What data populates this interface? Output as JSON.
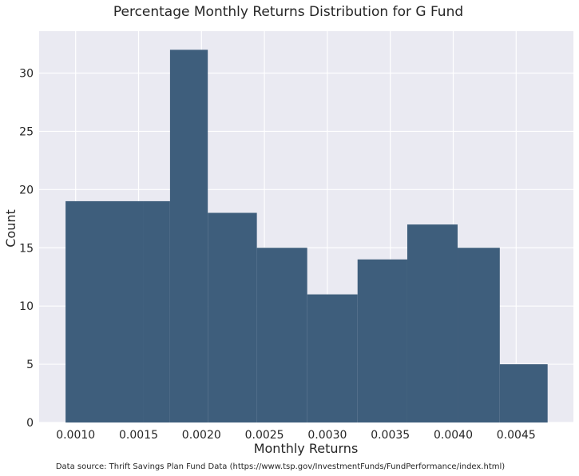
{
  "chart_data": {
    "type": "bar",
    "title": "Percentage Monthly Returns Distribution for G Fund",
    "xlabel": "Monthly Returns",
    "ylabel": "Count",
    "source_note": "Data source: Thrift Savings Plan Fund Data (https://www.tsp.gov/InvestmentFunds/FundPerformance/index.html)",
    "bin_edges": [
      0.00092,
      0.001535,
      0.00175,
      0.00205,
      0.00244,
      0.00284,
      0.00324,
      0.003635,
      0.004035,
      0.00437,
      0.00475
    ],
    "values": [
      19,
      19,
      32,
      18,
      15,
      11,
      14,
      17,
      15,
      5
    ],
    "xlim": [
      0.00071,
      0.004955
    ],
    "ylim": [
      0,
      33.6
    ],
    "xticks": [
      0.001,
      0.0015,
      0.002,
      0.0025,
      0.003,
      0.0035,
      0.004,
      0.0045
    ],
    "xtick_labels": [
      "0.0010",
      "0.0015",
      "0.0020",
      "0.0025",
      "0.0030",
      "0.0035",
      "0.0040",
      "0.0045"
    ],
    "yticks": [
      0,
      5,
      10,
      15,
      20,
      25,
      30
    ],
    "ytick_labels": [
      "0",
      "5",
      "10",
      "15",
      "20",
      "25",
      "30"
    ],
    "grid": true,
    "colors": {
      "bar": "#3e5e7c",
      "plot_background": "#eaeaf2",
      "grid": "#ffffff"
    }
  }
}
